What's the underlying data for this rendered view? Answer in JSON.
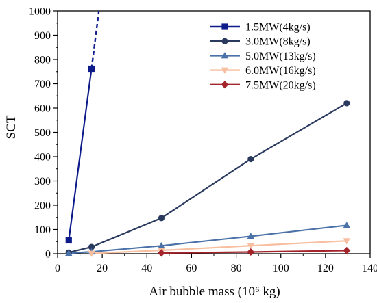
{
  "chart_data": {
    "type": "line",
    "xlabel": "Air bubble mass (10⁶ kg)",
    "ylabel": "SCT",
    "xlim": [
      0,
      140
    ],
    "ylim": [
      0,
      1000
    ],
    "xticks": [
      0,
      20,
      40,
      60,
      80,
      100,
      120,
      140
    ],
    "yticks": [
      0,
      100,
      200,
      300,
      400,
      500,
      600,
      700,
      800,
      900,
      1000
    ],
    "grid": false,
    "legend_position": "top-right",
    "series": [
      {
        "name": "1.5MW(4kg/s)",
        "color": "#0d1c8a",
        "marker": "square",
        "x": [
          5,
          15.2
        ],
        "y": [
          55,
          762
        ],
        "extrapolation": {
          "style": "dashed",
          "x": [
            15.2,
            18.5
          ],
          "y": [
            762,
            1000
          ]
        }
      },
      {
        "name": "3.0MW(8kg/s)",
        "color": "#2a3a5e",
        "marker": "circle",
        "x": [
          5,
          15.2,
          46.5,
          86.5,
          129.5
        ],
        "y": [
          5,
          28,
          147,
          390,
          620
        ]
      },
      {
        "name": "5.0MW(13kg/s)",
        "color": "#4a72a8",
        "marker": "triangle-up",
        "x": [
          5,
          15.2,
          46.5,
          86.5,
          129.5
        ],
        "y": [
          2,
          8,
          33,
          72,
          117
        ]
      },
      {
        "name": "6.0MW(16kg/s)",
        "color": "#f7bfa0",
        "marker": "triangle-down",
        "x": [
          15.2,
          46.5,
          86.5,
          129.5
        ],
        "y": [
          1,
          14,
          33,
          53
        ]
      },
      {
        "name": "7.5MW(20kg/s)",
        "color": "#a3242b",
        "marker": "diamond",
        "x": [
          46.5,
          86.5,
          129.5
        ],
        "y": [
          3,
          7,
          13
        ]
      }
    ]
  }
}
